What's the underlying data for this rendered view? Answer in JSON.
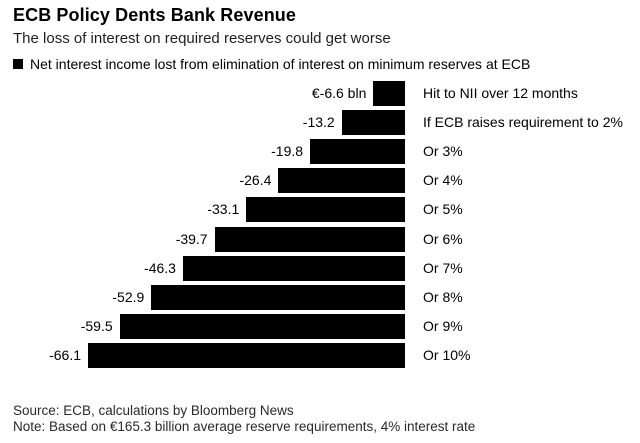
{
  "header": {
    "title": "ECB Policy Dents Bank Revenue",
    "subtitle": "The loss of interest on required reserves could get worse",
    "legend_label": "Net interest income lost from elimination of interest on minimum reserves at ECB"
  },
  "chart_data": {
    "type": "bar",
    "orientation": "horizontal",
    "bar_color": "#000000",
    "unit": "€ bln",
    "categories": [
      "Hit to NII over 12 months",
      "If ECB raises requirement to 2%",
      "Or 3%",
      "Or 4%",
      "Or 5%",
      "Or 6%",
      "Or 7%",
      "Or 8%",
      "Or 9%",
      "Or 10%"
    ],
    "values": [
      -6.6,
      -13.2,
      -19.8,
      -26.4,
      -33.1,
      -39.7,
      -46.3,
      -52.9,
      -59.5,
      -66.1
    ],
    "value_labels": [
      "€-6.6 bln",
      "-13.2",
      "-19.8",
      "-26.4",
      "-33.1",
      "-39.7",
      "-46.3",
      "-52.9",
      "-59.5",
      "-66.1"
    ],
    "xlim": [
      -66.1,
      0
    ],
    "grid": false,
    "legend_position": "top-left"
  },
  "footer": {
    "source": "Source: ECB, calculations by Bloomberg News",
    "note": "Note: Based on €165.3 billion average reserve requirements, 4% interest rate"
  }
}
